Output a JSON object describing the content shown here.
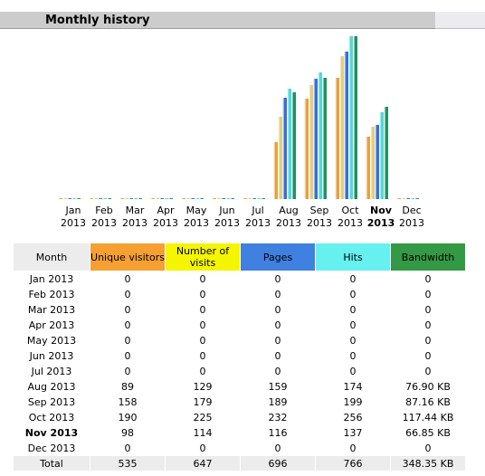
{
  "section": {
    "title": "Monthly history"
  },
  "columns": {
    "month": "Month",
    "unique_visitors": "Unique visitors",
    "visits": "Number of visits",
    "pages": "Pages",
    "hits": "Hits",
    "bandwidth": "Bandwidth"
  },
  "colors": {
    "unique_visitors": "#f5a030",
    "visits": "#f5f500",
    "pages": "#4080e0",
    "hits": "#66f0f0",
    "bandwidth": "#339944"
  },
  "rows": [
    {
      "month": "Jan 2013",
      "uv": "0",
      "visits": "0",
      "pages": "0",
      "hits": "0",
      "bw": "0"
    },
    {
      "month": "Feb 2013",
      "uv": "0",
      "visits": "0",
      "pages": "0",
      "hits": "0",
      "bw": "0"
    },
    {
      "month": "Mar 2013",
      "uv": "0",
      "visits": "0",
      "pages": "0",
      "hits": "0",
      "bw": "0"
    },
    {
      "month": "Apr 2013",
      "uv": "0",
      "visits": "0",
      "pages": "0",
      "hits": "0",
      "bw": "0"
    },
    {
      "month": "May 2013",
      "uv": "0",
      "visits": "0",
      "pages": "0",
      "hits": "0",
      "bw": "0"
    },
    {
      "month": "Jun 2013",
      "uv": "0",
      "visits": "0",
      "pages": "0",
      "hits": "0",
      "bw": "0"
    },
    {
      "month": "Jul 2013",
      "uv": "0",
      "visits": "0",
      "pages": "0",
      "hits": "0",
      "bw": "0"
    },
    {
      "month": "Aug 2013",
      "uv": "89",
      "visits": "129",
      "pages": "159",
      "hits": "174",
      "bw": "76.90 KB"
    },
    {
      "month": "Sep 2013",
      "uv": "158",
      "visits": "179",
      "pages": "189",
      "hits": "199",
      "bw": "87.16 KB"
    },
    {
      "month": "Oct 2013",
      "uv": "190",
      "visits": "225",
      "pages": "232",
      "hits": "256",
      "bw": "117.44 KB"
    },
    {
      "month": "Nov 2013",
      "uv": "98",
      "visits": "114",
      "pages": "116",
      "hits": "137",
      "bw": "66.85 KB",
      "current": true
    },
    {
      "month": "Dec 2013",
      "uv": "0",
      "visits": "0",
      "pages": "0",
      "hits": "0",
      "bw": "0"
    }
  ],
  "total": {
    "label": "Total",
    "uv": "535",
    "visits": "647",
    "pages": "696",
    "hits": "766",
    "bw": "348.35 KB"
  },
  "chart_data": {
    "type": "bar",
    "categories": [
      {
        "month": "Jan",
        "year": "2013"
      },
      {
        "month": "Feb",
        "year": "2013"
      },
      {
        "month": "Mar",
        "year": "2013"
      },
      {
        "month": "Apr",
        "year": "2013"
      },
      {
        "month": "May",
        "year": "2013"
      },
      {
        "month": "Jun",
        "year": "2013"
      },
      {
        "month": "Jul",
        "year": "2013"
      },
      {
        "month": "Aug",
        "year": "2013"
      },
      {
        "month": "Sep",
        "year": "2013"
      },
      {
        "month": "Oct",
        "year": "2013"
      },
      {
        "month": "Nov",
        "year": "2013",
        "current": true
      },
      {
        "month": "Dec",
        "year": "2013"
      }
    ],
    "series": [
      {
        "key": "uv",
        "color": "#e8a040",
        "values": [
          0,
          0,
          0,
          0,
          0,
          0,
          0,
          89,
          158,
          190,
          98,
          0
        ]
      },
      {
        "key": "visits",
        "color": "#e0d080",
        "values": [
          0,
          0,
          0,
          0,
          0,
          0,
          0,
          129,
          179,
          225,
          114,
          0
        ]
      },
      {
        "key": "pages",
        "color": "#3a6ed8",
        "values": [
          0,
          0,
          0,
          0,
          0,
          0,
          0,
          159,
          189,
          232,
          116,
          0
        ]
      },
      {
        "key": "hits",
        "color": "#55d8d8",
        "values": [
          0,
          0,
          0,
          0,
          0,
          0,
          0,
          174,
          199,
          256,
          137,
          0
        ]
      },
      {
        "key": "bandwidth",
        "color": "#229060",
        "values": [
          0,
          0,
          0,
          0,
          0,
          0,
          0,
          76.9,
          87.16,
          117.44,
          66.85,
          0
        ]
      }
    ],
    "unit_bandwidth": "KB",
    "legend": "none",
    "grid": false
  }
}
